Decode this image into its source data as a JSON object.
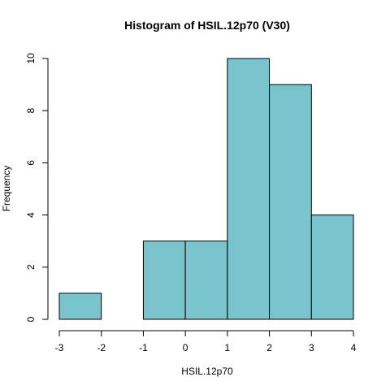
{
  "chart_data": {
    "type": "bar",
    "title": "Histogram of HSIL.12p70 (V30)",
    "xlabel": "HSIL.12p70",
    "ylabel": "Frequency",
    "bins": [
      {
        "x0": -3,
        "x1": -2,
        "count": 1
      },
      {
        "x0": -2,
        "x1": -1,
        "count": 0
      },
      {
        "x0": -1,
        "x1": 0,
        "count": 3
      },
      {
        "x0": 0,
        "x1": 1,
        "count": 3
      },
      {
        "x0": 1,
        "x1": 2,
        "count": 10
      },
      {
        "x0": 2,
        "x1": 3,
        "count": 9
      },
      {
        "x0": 3,
        "x1": 4,
        "count": 4
      }
    ],
    "xticks": [
      "-3",
      "-2",
      "-1",
      "0",
      "1",
      "2",
      "3",
      "4"
    ],
    "yticks": [
      "0",
      "2",
      "4",
      "6",
      "8",
      "10"
    ],
    "xlim": [
      -3,
      4
    ],
    "ylim": [
      0,
      10
    ],
    "bar_color": "#7AC5CD",
    "grid": false
  }
}
